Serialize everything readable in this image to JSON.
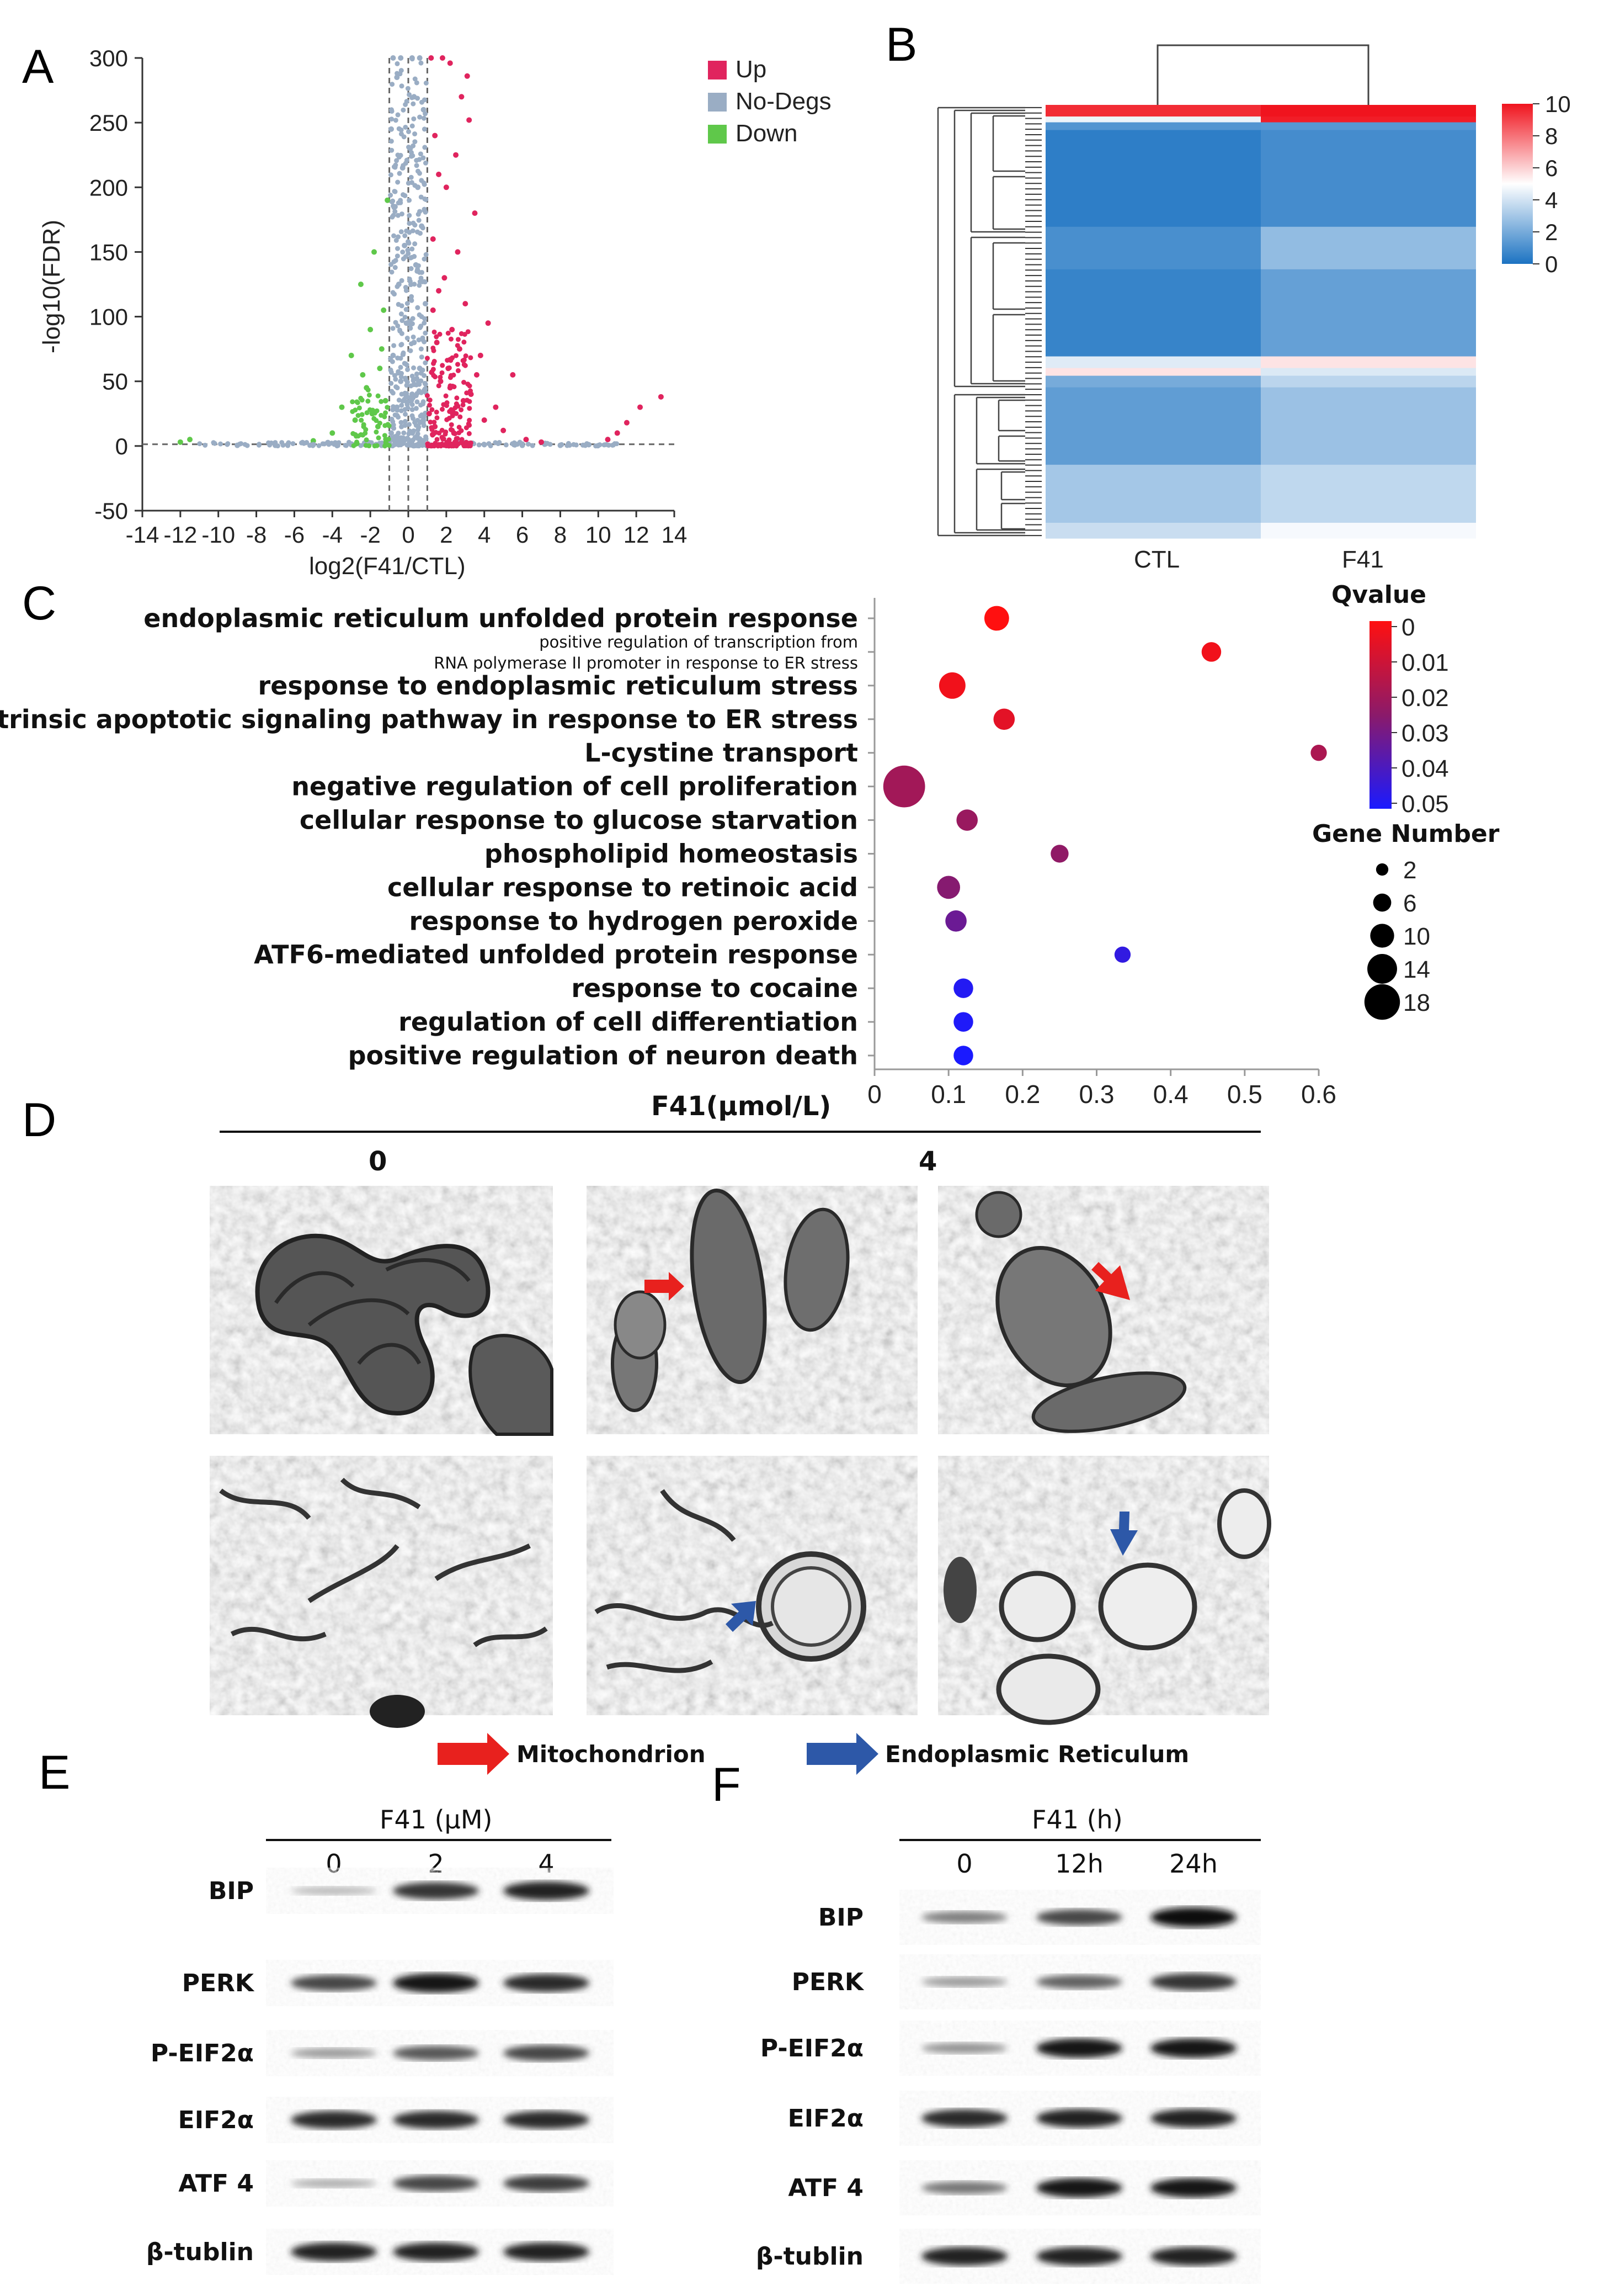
{
  "panels": {
    "A": "A",
    "B": "B",
    "C": "C",
    "D": "D",
    "E": "E",
    "F": "F"
  },
  "colors": {
    "up": "#e0245e",
    "nodeg": "#9aadc4",
    "down": "#5fc84a",
    "arrow_red": "#e8211e",
    "arrow_blue": "#2d58a8"
  },
  "chart_data": [
    {
      "id": "volcano",
      "type": "scatter",
      "title": "",
      "xlabel": "log2(F41/CTL)",
      "ylabel": "-log10(FDR)",
      "xlim": [
        -14,
        14
      ],
      "ylim": [
        -50,
        300
      ],
      "x_ticks": [
        "-14",
        "-12",
        "-10",
        "-8",
        "-6",
        "-4",
        "-2",
        "0",
        "2",
        "4",
        "6",
        "8",
        "10",
        "12",
        "14"
      ],
      "y_ticks": [
        "300",
        "250",
        "200",
        "150",
        "100",
        "50",
        "0",
        "-50"
      ],
      "threshold_lines_x": [
        -1,
        0,
        1
      ],
      "threshold_line_y": 1.3,
      "legend": [
        {
          "label": "Up",
          "color": "#e0245e"
        },
        {
          "label": "No-Degs",
          "color": "#9aadc4"
        },
        {
          "label": "Down",
          "color": "#5fc84a"
        }
      ],
      "series": [
        {
          "name": "Up",
          "points": [
            [
              1.2,
              300
            ],
            [
              1.8,
              300
            ],
            [
              2.2,
              296
            ],
            [
              3.1,
              286
            ],
            [
              2.8,
              270
            ],
            [
              3.2,
              252
            ],
            [
              1.4,
              240
            ],
            [
              2.5,
              225
            ],
            [
              1.6,
              210
            ],
            [
              2.0,
              200
            ],
            [
              3.5,
              180
            ],
            [
              1.3,
              160
            ],
            [
              2.6,
              150
            ],
            [
              1.9,
              130
            ],
            [
              3.0,
              110
            ],
            [
              4.2,
              95
            ],
            [
              5.5,
              55
            ],
            [
              2.3,
              90
            ],
            [
              3.8,
              70
            ],
            [
              1.5,
              80
            ],
            [
              2.1,
              60
            ],
            [
              3.3,
              40
            ],
            [
              4.6,
              30
            ],
            [
              1.7,
              50
            ],
            [
              2.9,
              35
            ],
            [
              4.0,
              20
            ],
            [
              5.0,
              12
            ],
            [
              6.2,
              5
            ],
            [
              7.0,
              3
            ],
            [
              1.1,
              25
            ],
            [
              1.4,
              15
            ],
            [
              2.4,
              10
            ],
            [
              10.5,
              5
            ],
            [
              11.0,
              10
            ],
            [
              11.5,
              18
            ],
            [
              12.2,
              30
            ],
            [
              13.3,
              38
            ],
            [
              3.6,
              55
            ],
            [
              2.7,
              75
            ],
            [
              1.3,
              105
            ],
            [
              1.6,
              120
            ],
            [
              2.2,
              45
            ]
          ]
        },
        {
          "name": "Down",
          "points": [
            [
              -1.1,
              190
            ],
            [
              -1.8,
              150
            ],
            [
              -2.5,
              125
            ],
            [
              -1.3,
              105
            ],
            [
              -2.0,
              90
            ],
            [
              -3.0,
              70
            ],
            [
              -1.5,
              60
            ],
            [
              -2.2,
              45
            ],
            [
              -3.5,
              30
            ],
            [
              -1.2,
              35
            ],
            [
              -2.8,
              20
            ],
            [
              -4.0,
              10
            ],
            [
              -1.6,
              15
            ],
            [
              -5.0,
              4
            ],
            [
              -11.5,
              5
            ],
            [
              -12.0,
              3
            ],
            [
              -1.4,
              75
            ],
            [
              -2.4,
              55
            ],
            [
              -1.9,
              25
            ]
          ]
        },
        {
          "name": "No-Degs",
          "points": [
            [
              -0.8,
              300
            ],
            [
              -0.4,
              300
            ],
            [
              0.2,
              300
            ],
            [
              0.6,
              300
            ],
            [
              -0.6,
              285
            ],
            [
              0.3,
              270
            ],
            [
              0.8,
              260
            ],
            [
              -0.9,
              245
            ],
            [
              0.1,
              230
            ],
            [
              -0.3,
              215
            ],
            [
              0.5,
              200
            ],
            [
              -0.7,
              185
            ],
            [
              0.7,
              170
            ],
            [
              -0.2,
              155
            ],
            [
              0.4,
              140
            ],
            [
              -0.5,
              125
            ],
            [
              0.9,
              110
            ],
            [
              -0.1,
              95
            ],
            [
              0.3,
              80
            ],
            [
              -0.8,
              70
            ],
            [
              0.6,
              60
            ],
            [
              -0.4,
              50
            ],
            [
              0.2,
              40
            ],
            [
              -0.6,
              30
            ],
            [
              0.8,
              20
            ],
            [
              -0.9,
              10
            ],
            [
              0.0,
              5
            ],
            [
              -0.3,
              2
            ],
            [
              0.5,
              1
            ],
            [
              -1.5,
              2
            ],
            [
              -3.0,
              1
            ],
            [
              -5.0,
              1
            ],
            [
              -7.0,
              0.5
            ],
            [
              -9.0,
              0.5
            ],
            [
              2.0,
              1
            ],
            [
              4.0,
              1
            ],
            [
              6.0,
              0.5
            ],
            [
              8.0,
              0.5
            ],
            [
              9.5,
              1
            ]
          ]
        }
      ]
    },
    {
      "id": "heatmap",
      "type": "heatmap",
      "title": "",
      "categories": [
        "CTL",
        "F41"
      ],
      "colorbar_ticks": [
        "10",
        "8",
        "6",
        "4",
        "2",
        "0"
      ],
      "clim": [
        0,
        10
      ],
      "blocks": [
        {
          "rows": 6,
          "values": [
            9.5,
            10
          ]
        },
        {
          "rows": 3,
          "values": [
            4.6,
            9.8
          ]
        },
        {
          "rows": 4,
          "values": [
            1.2,
            1.3
          ]
        },
        {
          "rows": 50,
          "values": [
            0.4,
            0.9
          ]
        },
        {
          "rows": 22,
          "values": [
            1.0,
            2.6
          ]
        },
        {
          "rows": 45,
          "values": [
            0.6,
            1.6
          ]
        },
        {
          "rows": 6,
          "values": [
            4.3,
            5.6
          ]
        },
        {
          "rows": 4,
          "values": [
            5.6,
            4.2
          ]
        },
        {
          "rows": 6,
          "values": [
            2.0,
            3.5
          ]
        },
        {
          "rows": 40,
          "values": [
            1.5,
            2.8
          ]
        },
        {
          "rows": 30,
          "values": [
            3.0,
            3.6
          ]
        },
        {
          "rows": 8,
          "values": [
            3.8,
            4.8
          ]
        }
      ]
    },
    {
      "id": "go_bubble",
      "type": "scatter",
      "title": "",
      "xlim": [
        0,
        0.6
      ],
      "x_ticks": [
        "0",
        "0.1",
        "0.2",
        "0.3",
        "0.4",
        "0.5",
        "0.6"
      ],
      "qvalue_label": "Qvalue",
      "qvalue_ticks": [
        "0",
        "0.01",
        "0.02",
        "0.03",
        "0.04",
        "0.05"
      ],
      "gene_label": "Gene Number",
      "gene_ticks": [
        "2",
        "6",
        "10",
        "14",
        "18"
      ],
      "terms": [
        {
          "term": "endoplasmic reticulum unfolded protein response",
          "x": 0.165,
          "q": 0.0,
          "n": 8
        },
        {
          "term_lines": [
            "positive regulation of transcription from",
            "RNA polymerase II promoter in response to ER stress"
          ],
          "x": 0.455,
          "q": 0.003,
          "n": 5
        },
        {
          "term": "response to endoplasmic reticulum stress",
          "x": 0.105,
          "q": 0.003,
          "n": 9
        },
        {
          "term": "intrinsic apoptotic signaling pathway in response to ER stress",
          "x": 0.175,
          "q": 0.006,
          "n": 6
        },
        {
          "term": "L-cystine transport",
          "x": 0.6,
          "q": 0.018,
          "n": 3
        },
        {
          "term": "negative regulation of cell proliferation",
          "x": 0.04,
          "q": 0.02,
          "n": 18
        },
        {
          "term": "cellular response to glucose starvation",
          "x": 0.125,
          "q": 0.022,
          "n": 6
        },
        {
          "term": "phospholipid homeostasis",
          "x": 0.25,
          "q": 0.024,
          "n": 4
        },
        {
          "term": "cellular response to retinoic acid",
          "x": 0.1,
          "q": 0.026,
          "n": 7
        },
        {
          "term": "response to hydrogen peroxide",
          "x": 0.11,
          "q": 0.032,
          "n": 6
        },
        {
          "term": "ATF6-mediated unfolded protein response",
          "x": 0.335,
          "q": 0.045,
          "n": 3
        },
        {
          "term": "response to cocaine",
          "x": 0.12,
          "q": 0.048,
          "n": 5
        },
        {
          "term": "regulation of cell differentiation",
          "x": 0.12,
          "q": 0.049,
          "n": 5
        },
        {
          "term": "positive regulation of neuron death",
          "x": 0.12,
          "q": 0.05,
          "n": 5
        }
      ]
    }
  ],
  "panelD": {
    "header": "F41(μmol/L)",
    "dose0": "0",
    "dose4": "4",
    "legend_mito": "Mitochondrion",
    "legend_er": "Endoplasmic Reticulum"
  },
  "panelE": {
    "header": "F41 (μM)",
    "lanes": [
      "0",
      "2",
      "4"
    ],
    "rows": [
      {
        "label": "BIP",
        "bands": [
          0.1,
          0.8,
          0.9
        ]
      },
      {
        "label": "PERK",
        "bands": [
          0.7,
          0.95,
          0.85
        ]
      },
      {
        "label": "P-EIF2α",
        "bands": [
          0.25,
          0.6,
          0.7
        ]
      },
      {
        "label": "EIF2α",
        "bands": [
          0.85,
          0.85,
          0.85
        ]
      },
      {
        "label": "ATF 4",
        "bands": [
          0.15,
          0.7,
          0.75
        ]
      },
      {
        "label": "β-tublin",
        "bands": [
          0.9,
          0.9,
          0.9
        ]
      }
    ]
  },
  "panelF": {
    "header": "F41 (h)",
    "lanes": [
      "0",
      "12h",
      "24h"
    ],
    "rows": [
      {
        "label": "BIP",
        "bands": [
          0.4,
          0.7,
          1.0
        ]
      },
      {
        "label": "PERK",
        "bands": [
          0.25,
          0.55,
          0.8
        ]
      },
      {
        "label": "P-EIF2α",
        "bands": [
          0.3,
          0.95,
          0.95
        ]
      },
      {
        "label": "EIF2α",
        "bands": [
          0.85,
          0.9,
          0.9
        ]
      },
      {
        "label": "ATF 4",
        "bands": [
          0.45,
          0.95,
          0.95
        ]
      },
      {
        "label": "β-tublin",
        "bands": [
          0.9,
          0.9,
          0.9
        ]
      }
    ]
  }
}
